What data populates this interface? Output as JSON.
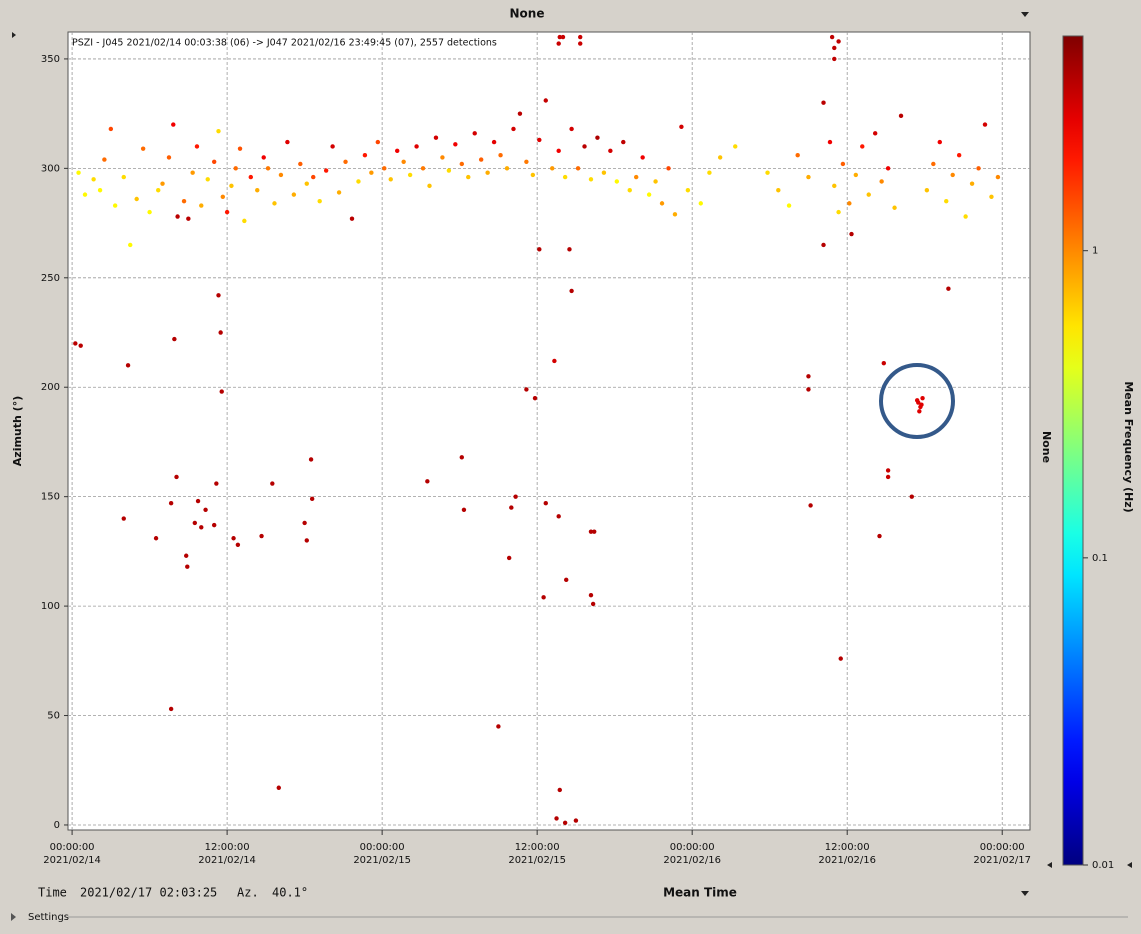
{
  "chart_data": {
    "type": "scatter",
    "title": "PSZI - J045 2021/02/14 00:03:38 (06) -> J047 2021/02/16 23:49:45 (07), 2557 detections",
    "top_label": "None",
    "side_label": "None",
    "x_label": "Mean Time",
    "y_label": "Azimuth (°)",
    "ylim": [
      -2.3,
      362.3
    ],
    "yticks": [
      0,
      50,
      100,
      150,
      200,
      250,
      300,
      350
    ],
    "xlim": [
      "2021-02-13 23:41",
      "2021-02-17 02:09"
    ],
    "xticks": [
      {
        "value": "2021-02-14 00:00",
        "label": [
          "00:00:00",
          "2021/02/14"
        ]
      },
      {
        "value": "2021-02-14 12:00",
        "label": [
          "12:00:00",
          "2021/02/14"
        ]
      },
      {
        "value": "2021-02-15 00:00",
        "label": [
          "00:00:00",
          "2021/02/15"
        ]
      },
      {
        "value": "2021-02-15 12:00",
        "label": [
          "12:00:00",
          "2021/02/15"
        ]
      },
      {
        "value": "2021-02-16 00:00",
        "label": [
          "00:00:00",
          "2021/02/16"
        ]
      },
      {
        "value": "2021-02-16 12:00",
        "label": [
          "12:00:00",
          "2021/02/16"
        ]
      },
      {
        "value": "2021-02-17 00:00",
        "label": [
          "00:00:00",
          "2021/02/17"
        ]
      }
    ],
    "grid": true,
    "colormap": "jet",
    "colorbar": {
      "label": "Mean Frequency (Hz)",
      "scale": "log",
      "lim": [
        0.01,
        5
      ],
      "ticks": [
        1,
        0.1,
        0.01
      ]
    },
    "x": [
      "2021-02-14 00:30",
      "2021-02-14 01:00",
      "2021-02-14 01:40",
      "2021-02-14 02:10",
      "2021-02-14 02:30",
      "2021-02-14 03:00",
      "2021-02-14 03:20",
      "2021-02-14 04:00",
      "2021-02-14 04:30",
      "2021-02-14 05:00",
      "2021-02-14 05:30",
      "2021-02-14 06:00",
      "2021-02-14 06:40",
      "2021-02-14 07:00",
      "2021-02-14 07:30",
      "2021-02-14 07:50",
      "2021-02-14 08:10",
      "2021-02-14 08:40",
      "2021-02-14 09:00",
      "2021-02-14 09:20",
      "2021-02-14 09:40",
      "2021-02-14 10:00",
      "2021-02-14 10:30",
      "2021-02-14 11:00",
      "2021-02-14 11:20",
      "2021-02-14 11:40",
      "2021-02-14 12:00",
      "2021-02-14 12:20",
      "2021-02-14 12:40",
      "2021-02-14 13:00",
      "2021-02-14 13:20",
      "2021-02-14 13:50",
      "2021-02-14 14:20",
      "2021-02-14 14:50",
      "2021-02-14 15:10",
      "2021-02-14 15:40",
      "2021-02-14 16:10",
      "2021-02-14 16:40",
      "2021-02-14 17:10",
      "2021-02-14 17:40",
      "2021-02-14 18:10",
      "2021-02-14 18:40",
      "2021-02-14 19:10",
      "2021-02-14 19:40",
      "2021-02-14 20:10",
      "2021-02-14 20:40",
      "2021-02-14 21:10",
      "2021-02-14 21:40",
      "2021-02-14 22:10",
      "2021-02-14 22:40",
      "2021-02-14 23:10",
      "2021-02-14 23:40",
      "2021-02-15 00:10",
      "2021-02-15 00:40",
      "2021-02-15 01:10",
      "2021-02-15 01:40",
      "2021-02-15 02:10",
      "2021-02-15 02:40",
      "2021-02-15 03:10",
      "2021-02-15 03:40",
      "2021-02-15 04:10",
      "2021-02-15 04:40",
      "2021-02-15 05:10",
      "2021-02-15 05:40",
      "2021-02-15 06:10",
      "2021-02-15 06:40",
      "2021-02-15 07:10",
      "2021-02-15 07:40",
      "2021-02-15 08:10",
      "2021-02-15 08:40",
      "2021-02-15 09:10",
      "2021-02-15 09:40",
      "2021-02-15 10:10",
      "2021-02-15 10:40",
      "2021-02-15 11:10",
      "2021-02-15 11:40",
      "2021-02-15 12:10",
      "2021-02-15 12:40",
      "2021-02-15 13:10",
      "2021-02-15 13:40",
      "2021-02-15 14:10",
      "2021-02-15 14:40",
      "2021-02-15 15:10",
      "2021-02-15 15:40",
      "2021-02-15 16:10",
      "2021-02-15 16:40",
      "2021-02-15 17:10",
      "2021-02-15 17:40",
      "2021-02-15 18:10",
      "2021-02-15 18:40",
      "2021-02-15 19:10",
      "2021-02-15 19:40",
      "2021-02-15 20:10",
      "2021-02-15 20:40",
      "2021-02-15 21:10",
      "2021-02-15 21:40",
      "2021-02-15 22:10",
      "2021-02-15 22:40",
      "2021-02-15 23:10",
      "2021-02-15 23:40",
      "2021-02-16 00:40",
      "2021-02-16 01:20",
      "2021-02-16 02:10",
      "2021-02-16 03:20",
      "2021-02-16 05:50",
      "2021-02-16 06:40",
      "2021-02-16 07:30",
      "2021-02-16 08:10",
      "2021-02-16 09:00",
      "2021-02-16 10:10",
      "2021-02-16 10:40",
      "2021-02-16 11:00",
      "2021-02-16 11:20",
      "2021-02-16 11:40",
      "2021-02-16 12:10",
      "2021-02-16 12:40",
      "2021-02-16 13:10",
      "2021-02-16 13:40",
      "2021-02-16 14:10",
      "2021-02-16 14:40",
      "2021-02-16 15:10",
      "2021-02-16 15:40",
      "2021-02-16 16:10",
      "2021-02-16 18:10",
      "2021-02-16 18:40",
      "2021-02-16 19:10",
      "2021-02-16 19:40",
      "2021-02-16 20:10",
      "2021-02-16 20:40",
      "2021-02-16 21:10",
      "2021-02-16 21:40",
      "2021-02-16 22:10",
      "2021-02-16 22:40",
      "2021-02-16 23:10",
      "2021-02-16 23:40",
      "2021-02-14 00:15",
      "2021-02-14 00:40",
      "2021-02-14 04:00",
      "2021-02-14 04:20",
      "2021-02-14 06:30",
      "2021-02-14 07:40",
      "2021-02-14 07:40",
      "2021-02-14 07:55",
      "2021-02-14 08:05",
      "2021-02-14 08:50",
      "2021-02-14 08:55",
      "2021-02-14 09:30",
      "2021-02-14 09:45",
      "2021-02-14 10:00",
      "2021-02-14 10:20",
      "2021-02-14 11:00",
      "2021-02-14 11:10",
      "2021-02-14 11:20",
      "2021-02-14 11:30",
      "2021-02-14 11:35",
      "2021-02-14 12:30",
      "2021-02-14 12:50",
      "2021-02-14 14:40",
      "2021-02-14 15:30",
      "2021-02-14 16:00",
      "2021-02-14 18:00",
      "2021-02-14 18:10",
      "2021-02-14 18:30",
      "2021-02-14 18:35",
      "2021-02-15 03:30",
      "2021-02-15 06:10",
      "2021-02-15 06:20",
      "2021-02-15 09:00",
      "2021-02-15 09:50",
      "2021-02-15 10:00",
      "2021-02-15 10:20",
      "2021-02-15 11:10",
      "2021-02-15 11:50",
      "2021-02-15 12:30",
      "2021-02-15 12:40",
      "2021-02-15 13:40",
      "2021-02-15 13:30",
      "2021-02-15 13:45",
      "2021-02-15 14:10",
      "2021-02-15 14:15",
      "2021-02-15 14:40",
      "2021-02-15 15:00",
      "2021-02-15 16:10",
      "2021-02-15 16:25",
      "2021-02-15 16:10",
      "2021-02-15 16:20",
      "2021-02-15 12:10",
      "2021-02-15 14:30",
      "2021-02-15 13:20",
      "2021-02-15 13:40",
      "2021-02-15 14:00",
      "2021-02-15 15:20",
      "2021-02-15 13:45",
      "2021-02-15 15:20",
      "2021-02-16 09:10",
      "2021-02-16 09:00",
      "2021-02-16 09:00",
      "2021-02-16 10:10",
      "2021-02-16 11:30",
      "2021-02-16 10:50",
      "2021-02-16 11:00",
      "2021-02-16 11:20",
      "2021-02-16 11:00",
      "2021-02-16 12:20",
      "2021-02-16 14:30",
      "2021-02-16 14:50",
      "2021-02-16 15:10",
      "2021-02-16 15:10",
      "2021-02-16 17:00",
      "2021-02-16 19:50",
      "2021-02-16 17:30",
      "2021-02-16 17:40",
      "2021-02-16 17:50",
      "2021-02-16 17:35",
      "2021-02-16 17:45",
      "2021-02-16 17:25"
    ],
    "values": [
      298,
      288,
      295,
      290,
      304,
      318,
      283,
      296,
      265,
      286,
      309,
      280,
      290,
      293,
      305,
      320,
      278,
      285,
      277,
      298,
      310,
      283,
      295,
      303,
      317,
      287,
      280,
      292,
      300,
      309,
      276,
      296,
      290,
      305,
      300,
      284,
      297,
      312,
      288,
      302,
      293,
      296,
      285,
      299,
      310,
      289,
      303,
      277,
      294,
      306,
      298,
      312,
      300,
      295,
      308,
      303,
      297,
      310,
      300,
      292,
      314,
      305,
      299,
      311,
      302,
      296,
      316,
      304,
      298,
      312,
      306,
      300,
      318,
      325,
      303,
      297,
      313,
      331,
      300,
      308,
      296,
      318,
      300,
      310,
      295,
      314,
      298,
      308,
      294,
      312,
      290,
      296,
      305,
      288,
      294,
      284,
      300,
      279,
      319,
      290,
      284,
      298,
      305,
      310,
      298,
      290,
      283,
      306,
      296,
      330,
      312,
      292,
      280,
      302,
      284,
      297,
      310,
      288,
      316,
      294,
      300,
      282,
      324,
      290,
      302,
      312,
      285,
      297,
      306,
      278,
      293,
      300,
      320,
      287,
      296,
      220,
      219,
      140,
      210,
      131,
      147,
      53,
      222,
      159,
      123,
      118,
      138,
      148,
      136,
      144,
      137,
      156,
      242,
      225,
      198,
      131,
      128,
      132,
      156,
      17,
      138,
      130,
      167,
      149,
      157,
      168,
      144,
      45,
      122,
      145,
      150,
      199,
      195,
      104,
      147,
      141,
      3,
      16,
      1,
      112,
      244,
      2,
      134,
      134,
      105,
      101,
      263,
      263,
      212,
      357,
      360,
      357,
      360,
      360,
      146,
      205,
      199,
      265,
      76,
      360,
      355,
      358,
      350,
      270,
      132,
      211,
      162,
      159,
      150,
      245,
      193,
      191,
      195,
      189,
      192,
      194
    ],
    "color_values": [
      0.5,
      0.5,
      0.6,
      0.5,
      1.2,
      1.5,
      0.5,
      0.6,
      0.5,
      0.7,
      1.2,
      0.5,
      0.6,
      0.9,
      1.3,
      2.5,
      3.5,
      1.2,
      3.5,
      0.9,
      2,
      0.8,
      0.6,
      1.5,
      0.6,
      1,
      2,
      0.7,
      1.2,
      1.4,
      0.6,
      2,
      0.8,
      2.5,
      1.1,
      0.7,
      1,
      2.8,
      0.8,
      1.3,
      0.7,
      1.5,
      0.6,
      2,
      3,
      0.8,
      1.2,
      3.5,
      0.6,
      2,
      0.9,
      1.5,
      1.2,
      0.7,
      2.5,
      1,
      0.6,
      2.8,
      1.1,
      0.7,
      3,
      1,
      0.6,
      2.5,
      1.2,
      0.7,
      3,
      1.3,
      0.8,
      2.7,
      1.2,
      0.8,
      3,
      3.5,
      1.1,
      0.7,
      2.8,
      3.3,
      0.9,
      2.5,
      0.6,
      3,
      1.2,
      3.5,
      0.6,
      3.8,
      0.7,
      3,
      0.5,
      3.4,
      0.6,
      1,
      2.5,
      0.5,
      0.7,
      0.9,
      1.5,
      0.8,
      3,
      0.6,
      0.5,
      0.6,
      0.7,
      0.6,
      0.6,
      0.7,
      0.5,
      1.2,
      0.8,
      3.5,
      2.5,
      0.7,
      0.6,
      1.3,
      1,
      0.8,
      2,
      0.7,
      3,
      1,
      2.5,
      0.7,
      3.5,
      0.7,
      1.2,
      2.5,
      0.6,
      1,
      2,
      0.6,
      0.8,
      1.3,
      3,
      0.7,
      1,
      3.5,
      3.5,
      3.6,
      3.6,
      3.6,
      3.6,
      3.6,
      3.6,
      3.6,
      3.6,
      3.6,
      3.6,
      3.6,
      3.6,
      3.6,
      3.6,
      3.6,
      3.6,
      3.6,
      3.6,
      3.6,
      3.6,
      3.6,
      3.6,
      3.6,
      3.6,
      3.6,
      3.6,
      3.6,
      3.6,
      3.6,
      3.6,
      3.6,
      3.6,
      3.6,
      3.6,
      3.6,
      3.6,
      3.6,
      3.6,
      3.6,
      3.6,
      3.6,
      3.6,
      3.6,
      3.6,
      3.6,
      3.6,
      3.6,
      3.6,
      3.6,
      3.6,
      3.6,
      3,
      3.2,
      3.2,
      3.2,
      3.2,
      3.2,
      3.6,
      3.6,
      3.6,
      3.6,
      3.6,
      3.4,
      3.4,
      3.4,
      3.4,
      3.6,
      3.6,
      3.2,
      3.2,
      3.2,
      3.6,
      3.6,
      2.8,
      2.8,
      2.8,
      2.8,
      2.8,
      2.8
    ]
  },
  "status": {
    "time_label": "Time",
    "time": "2021/02/17 02:03:25",
    "az_label": "Az.",
    "az": "40.1°"
  },
  "settings": "Settings"
}
